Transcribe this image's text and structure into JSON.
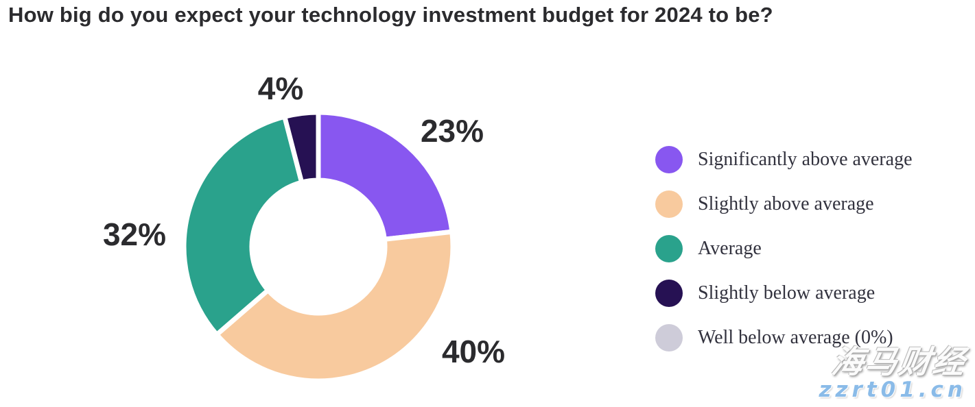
{
  "title": "How big do you expect your technology investment budget for 2024 to be?",
  "chart_data": {
    "type": "pie",
    "subtype": "donut",
    "title": "How big do you expect your technology investment budget for 2024 to be?",
    "start_angle": "top",
    "direction": "clockwise",
    "hole_ratio": 0.5,
    "grid": false,
    "legend_position": "right",
    "slices": [
      {
        "label": "Significantly above average",
        "value": 23,
        "pct_label": "23%",
        "color": "#8857F0"
      },
      {
        "label": "Slightly above average",
        "value": 40,
        "pct_label": "40%",
        "color": "#F8CA9E"
      },
      {
        "label": "Average",
        "value": 32,
        "pct_label": "32%",
        "color": "#2AA28C"
      },
      {
        "label": "Slightly below average",
        "value": 4,
        "pct_label": "4%",
        "color": "#261153"
      },
      {
        "label": "Well below average (0%)",
        "value": 0,
        "pct_label": "",
        "color": "#CECCD9"
      }
    ]
  },
  "watermark": {
    "brand": "海马财经",
    "url": "zzrt01.cn"
  }
}
